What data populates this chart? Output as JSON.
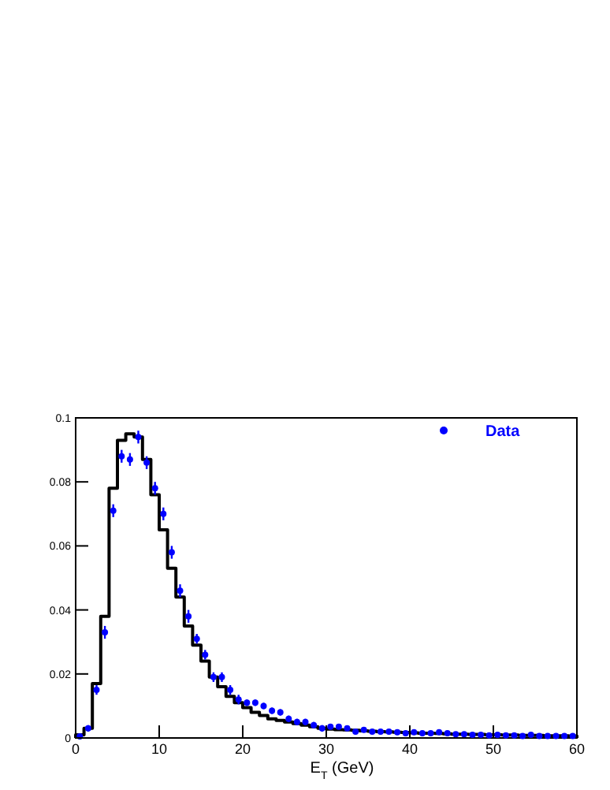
{
  "chart_data": {
    "type": "histogram",
    "xlabel": "E$_{T}$ (GeV)",
    "xlim": [
      0,
      60
    ],
    "xticks": [
      0,
      10,
      20,
      30,
      40,
      50,
      60
    ],
    "ylim": [
      0,
      0.1
    ],
    "yticks": [
      0,
      0.02,
      0.04,
      0.06,
      0.08,
      0.1
    ],
    "legend": "top right",
    "grid": false,
    "bins": [
      0,
      1,
      2,
      3,
      4,
      5,
      6,
      7,
      8,
      9,
      10,
      11,
      12,
      13,
      14,
      15,
      16,
      17,
      18,
      19,
      20,
      21,
      22,
      23,
      24,
      25,
      26,
      27,
      28,
      29,
      30,
      31,
      32,
      33,
      34,
      35,
      36,
      37,
      38,
      39,
      40,
      41,
      42,
      43,
      44,
      45,
      46,
      47,
      48,
      49,
      50,
      51,
      52,
      53,
      54,
      55,
      56,
      57,
      58,
      59,
      60
    ],
    "series": [
      {
        "color": "#000000",
        "values": [
          0.001,
          0.003,
          0.017,
          0.038,
          0.078,
          0.093,
          0.095,
          0.094,
          0.087,
          0.076,
          0.065,
          0.053,
          0.044,
          0.035,
          0.029,
          0.024,
          0.019,
          0.016,
          0.013,
          0.011,
          0.0095,
          0.008,
          0.007,
          0.006,
          0.0055,
          0.005,
          0.0045,
          0.004,
          0.0035,
          0.003,
          0.0028,
          0.0026,
          0.0025,
          0.0024,
          0.0022,
          0.0021,
          0.002,
          0.0019,
          0.0018,
          0.0017,
          0.0016,
          0.0015,
          0.0015,
          0.0014,
          0.0013,
          0.0012,
          0.0012,
          0.0011,
          0.0011,
          0.001,
          0.001,
          0.0009,
          0.0009,
          0.0008,
          0.0008,
          0.0008,
          0.0007,
          0.0007,
          0.0007,
          0.0006
        ]
      },
      {
        "type": "scatter",
        "name": "Data",
        "color": "#0000ff",
        "marker": "circle",
        "x": [
          0.5,
          1.5,
          2.5,
          3.5,
          4.5,
          5.5,
          6.5,
          7.5,
          8.5,
          9.5,
          10.5,
          11.5,
          12.5,
          13.5,
          14.5,
          15.5,
          16.5,
          17.5,
          18.5,
          19.5,
          20.5,
          21.5,
          22.5,
          23.5,
          24.5,
          25.5,
          26.5,
          27.5,
          28.5,
          29.5,
          30.5,
          31.5,
          32.5,
          33.5,
          34.5,
          35.5,
          36.5,
          37.5,
          38.5,
          39.5,
          40.5,
          41.5,
          42.5,
          43.5,
          44.5,
          45.5,
          46.5,
          47.5,
          48.5,
          49.5,
          50.5,
          51.5,
          52.5,
          53.5,
          54.5,
          55.5,
          56.5,
          57.5,
          58.5,
          59.5
        ],
        "values": [
          0.0005,
          0.003,
          0.015,
          0.033,
          0.071,
          0.088,
          0.087,
          0.094,
          0.086,
          0.078,
          0.07,
          0.058,
          0.046,
          0.038,
          0.031,
          0.026,
          0.019,
          0.019,
          0.015,
          0.012,
          0.011,
          0.011,
          0.01,
          0.0085,
          0.008,
          0.006,
          0.005,
          0.005,
          0.004,
          0.003,
          0.0035,
          0.0035,
          0.003,
          0.002,
          0.0025,
          0.002,
          0.002,
          0.002,
          0.0018,
          0.0015,
          0.0018,
          0.0015,
          0.0015,
          0.0018,
          0.0015,
          0.0012,
          0.0012,
          0.001,
          0.001,
          0.0008,
          0.001,
          0.0008,
          0.0008,
          0.0006,
          0.001,
          0.0006,
          0.0006,
          0.0006,
          0.0006,
          0.0006
        ],
        "errors": [
          0.0004,
          0.001,
          0.0015,
          0.002,
          0.002,
          0.002,
          0.002,
          0.002,
          0.002,
          0.002,
          0.002,
          0.002,
          0.002,
          0.002,
          0.0015,
          0.0015,
          0.0015,
          0.0015,
          0.0015,
          0.0015,
          0.001,
          0.001,
          0.001,
          0.001,
          0.001,
          0.001,
          0.001,
          0.001,
          0.001,
          0.001,
          0.0006,
          0.0006,
          0.0006,
          0.0006,
          0.0006,
          0.0006,
          0.0006,
          0.0006,
          0.0006,
          0.0006,
          0.0004,
          0.0004,
          0.0004,
          0.0004,
          0.0004,
          0.0004,
          0.0004,
          0.0004,
          0.0004,
          0.0004,
          0.0004,
          0.0004,
          0.0004,
          0.0004,
          0.0004,
          0.0004,
          0.0004,
          0.0004,
          0.0004,
          0.0004
        ]
      }
    ]
  }
}
